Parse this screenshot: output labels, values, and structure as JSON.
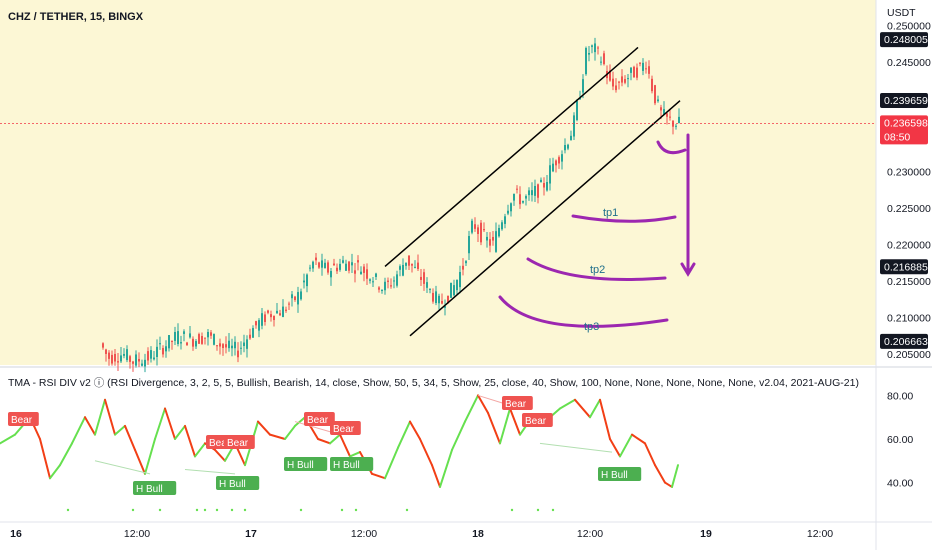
{
  "header": {
    "symbol_title": "CHZ / TETHER, 15, BINGX",
    "currency": "USDT"
  },
  "colors": {
    "background_highlight": "#fcf7d5",
    "candle_up": "#26a69a",
    "candle_down": "#ef5350",
    "channel": "#000000",
    "annotation": "#9c27b0",
    "bear_label": "#ef5350",
    "bull_label": "#4caf50",
    "current_price_tag": "#f23645",
    "marked_price_tag": "#131722",
    "rsi_line_up": "#66e04f",
    "rsi_line_down": "#f23f16"
  },
  "price_axis": {
    "ticks": [
      "0.250000",
      "0.245000",
      "0.230000",
      "0.225000",
      "0.220000",
      "0.215000",
      "0.210000",
      "0.205000"
    ],
    "ylim": [
      0.2035,
      0.2535
    ],
    "marked_levels": [
      {
        "value": "0.248005",
        "kind": "marked"
      },
      {
        "value": "0.239659",
        "kind": "marked"
      },
      {
        "value": "0.216885",
        "kind": "marked"
      },
      {
        "value": "0.206663",
        "kind": "marked"
      }
    ],
    "current_price": {
      "value": "0.236598",
      "countdown": "08:50"
    }
  },
  "annotations": {
    "tp_labels": [
      "tp1",
      "tp2",
      "tp3"
    ],
    "tp_levels": [
      0.2255,
      0.2155,
      0.2074
    ]
  },
  "indicator": {
    "title": "TMA - RSI DIV v2 ⓘ (RSI Divergence, 3, 2, 5, 5, Bullish, Bearish, 14, close, Show, 50, 5, 34, 5, Show, 25, close, 40, Show, 100, None, None, None, None, None, v2.04, 2021-AUG-21)",
    "ticks": [
      "80.00",
      "60.00",
      "40.00"
    ],
    "ylim": [
      32,
      88
    ],
    "bear_label": "Bear",
    "bull_label": "H Bull"
  },
  "time_axis": {
    "labels": [
      "16",
      "12:00",
      "17",
      "12:00",
      "18",
      "12:00",
      "19",
      "12:00"
    ]
  },
  "chart_data": {
    "type": "candlestick",
    "title": "CHZ / TETHER, 15, BINGX",
    "ylabel": "USDT",
    "ylim": [
      0.2035,
      0.2535
    ],
    "trend": [
      [
        102,
        0.2065
      ],
      [
        110,
        0.2045
      ],
      [
        125,
        0.205
      ],
      [
        135,
        0.204
      ],
      [
        150,
        0.2045
      ],
      [
        165,
        0.206
      ],
      [
        180,
        0.2075
      ],
      [
        195,
        0.207
      ],
      [
        210,
        0.2075
      ],
      [
        225,
        0.206
      ],
      [
        240,
        0.2055
      ],
      [
        255,
        0.2085
      ],
      [
        270,
        0.2105
      ],
      [
        285,
        0.211
      ],
      [
        300,
        0.213
      ],
      [
        315,
        0.2175
      ],
      [
        330,
        0.2165
      ],
      [
        345,
        0.2175
      ],
      [
        360,
        0.217
      ],
      [
        375,
        0.2155
      ],
      [
        385,
        0.214
      ],
      [
        395,
        0.215
      ],
      [
        408,
        0.218
      ],
      [
        420,
        0.216
      ],
      [
        430,
        0.214
      ],
      [
        442,
        0.2118
      ],
      [
        455,
        0.214
      ],
      [
        465,
        0.217
      ],
      [
        475,
        0.223
      ],
      [
        485,
        0.221
      ],
      [
        495,
        0.22
      ],
      [
        505,
        0.224
      ],
      [
        515,
        0.227
      ],
      [
        525,
        0.226
      ],
      [
        535,
        0.227
      ],
      [
        545,
        0.228
      ],
      [
        555,
        0.231
      ],
      [
        565,
        0.233
      ],
      [
        575,
        0.236
      ],
      [
        582,
        0.241
      ],
      [
        588,
        0.246
      ],
      [
        595,
        0.247
      ],
      [
        605,
        0.245
      ],
      [
        613,
        0.2415
      ],
      [
        620,
        0.242
      ],
      [
        630,
        0.243
      ],
      [
        640,
        0.244
      ],
      [
        648,
        0.245
      ],
      [
        655,
        0.241
      ],
      [
        662,
        0.238
      ],
      [
        670,
        0.237
      ],
      [
        678,
        0.2366
      ]
    ],
    "channel": {
      "upper": [
        [
          385,
          0.217
        ],
        [
          638,
          0.247
        ]
      ],
      "lower": [
        [
          410,
          0.2075
        ],
        [
          680,
          0.2397
        ]
      ]
    },
    "rsi": {
      "ylim": [
        32,
        88
      ],
      "series": [
        [
          0,
          58
        ],
        [
          15,
          62
        ],
        [
          30,
          70
        ],
        [
          40,
          60
        ],
        [
          50,
          42
        ],
        [
          60,
          48
        ],
        [
          72,
          58
        ],
        [
          85,
          70
        ],
        [
          95,
          62
        ],
        [
          105,
          78
        ],
        [
          115,
          62
        ],
        [
          125,
          66
        ],
        [
          135,
          55
        ],
        [
          145,
          44
        ],
        [
          155,
          60
        ],
        [
          165,
          74
        ],
        [
          175,
          60
        ],
        [
          185,
          66
        ],
        [
          195,
          52
        ],
        [
          205,
          58
        ],
        [
          215,
          55
        ],
        [
          225,
          50
        ],
        [
          235,
          58
        ],
        [
          245,
          48
        ],
        [
          258,
          68
        ],
        [
          270,
          62
        ],
        [
          285,
          60
        ],
        [
          295,
          66
        ],
        [
          305,
          70
        ],
        [
          318,
          60
        ],
        [
          330,
          58
        ],
        [
          340,
          62
        ],
        [
          350,
          52
        ],
        [
          360,
          54
        ],
        [
          372,
          44
        ],
        [
          385,
          42
        ],
        [
          398,
          56
        ],
        [
          410,
          68
        ],
        [
          420,
          60
        ],
        [
          432,
          48
        ],
        [
          440,
          38
        ],
        [
          452,
          55
        ],
        [
          465,
          68
        ],
        [
          478,
          80
        ],
        [
          488,
          72
        ],
        [
          500,
          58
        ],
        [
          510,
          74
        ],
        [
          520,
          62
        ],
        [
          532,
          70
        ],
        [
          545,
          68
        ],
        [
          560,
          74
        ],
        [
          575,
          78
        ],
        [
          590,
          70
        ],
        [
          600,
          78
        ],
        [
          610,
          60
        ],
        [
          620,
          52
        ],
        [
          632,
          62
        ],
        [
          645,
          58
        ],
        [
          655,
          48
        ],
        [
          665,
          40
        ],
        [
          672,
          38
        ],
        [
          678,
          48
        ]
      ]
    }
  }
}
